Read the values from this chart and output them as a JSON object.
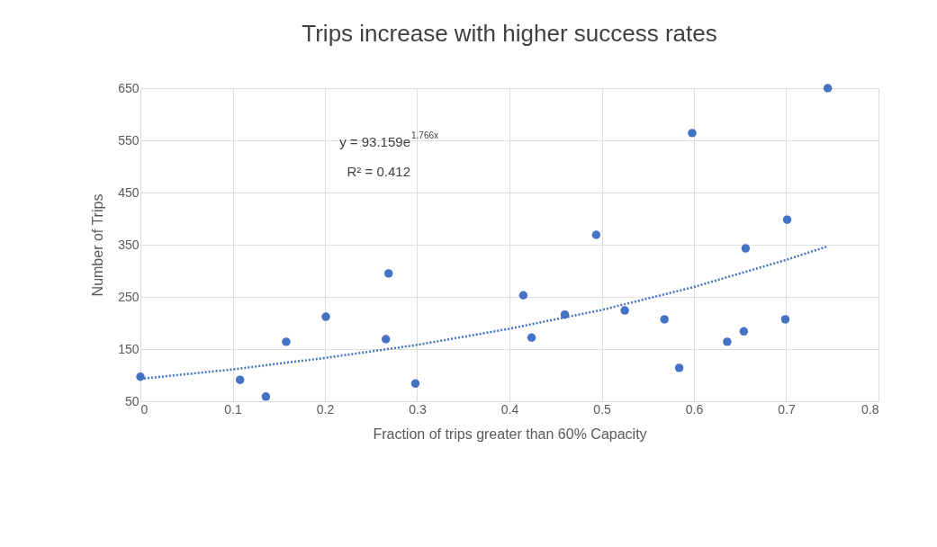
{
  "chart_data": {
    "type": "scatter",
    "title": "Trips increase with higher success rates",
    "xlabel": "Fraction of trips greater than 60% Capacity",
    "ylabel": "Number of Trips",
    "xlim": [
      0,
      0.8
    ],
    "xticks": [
      0,
      0.1,
      0.2,
      0.3,
      0.4,
      0.5,
      0.6,
      0.7,
      0.8
    ],
    "ylim": [
      50,
      650
    ],
    "yticks": [
      50,
      150,
      250,
      350,
      450,
      550,
      650
    ],
    "grid": true,
    "series": [
      {
        "marker": "circle",
        "color": "#4472c4",
        "x": [
          0,
          0.108,
          0.136,
          0.158,
          0.201,
          0.266,
          0.269,
          0.298,
          0.415,
          0.424,
          0.46,
          0.494,
          0.525,
          0.568,
          0.584,
          0.598,
          0.636,
          0.654,
          0.656,
          0.699,
          0.701,
          0.745
        ],
        "values": [
          97,
          91,
          59,
          164,
          212,
          169,
          295,
          84,
          253,
          172,
          216,
          369,
          224,
          207,
          114,
          564,
          164,
          184,
          343,
          207,
          398,
          650
        ]
      },
      {
        "type": "line",
        "line_style": "dotted",
        "color": "#4472c4",
        "x": [
          0,
          0.1,
          0.2,
          0.3,
          0.4,
          0.5,
          0.6,
          0.7,
          0.745
        ],
        "values": [
          93,
          111,
          133,
          158,
          189,
          225,
          269,
          321,
          347
        ]
      }
    ],
    "annotations": [
      "y = 93.159e$^{1.766x}$",
      "R² = 0.412"
    ]
  }
}
